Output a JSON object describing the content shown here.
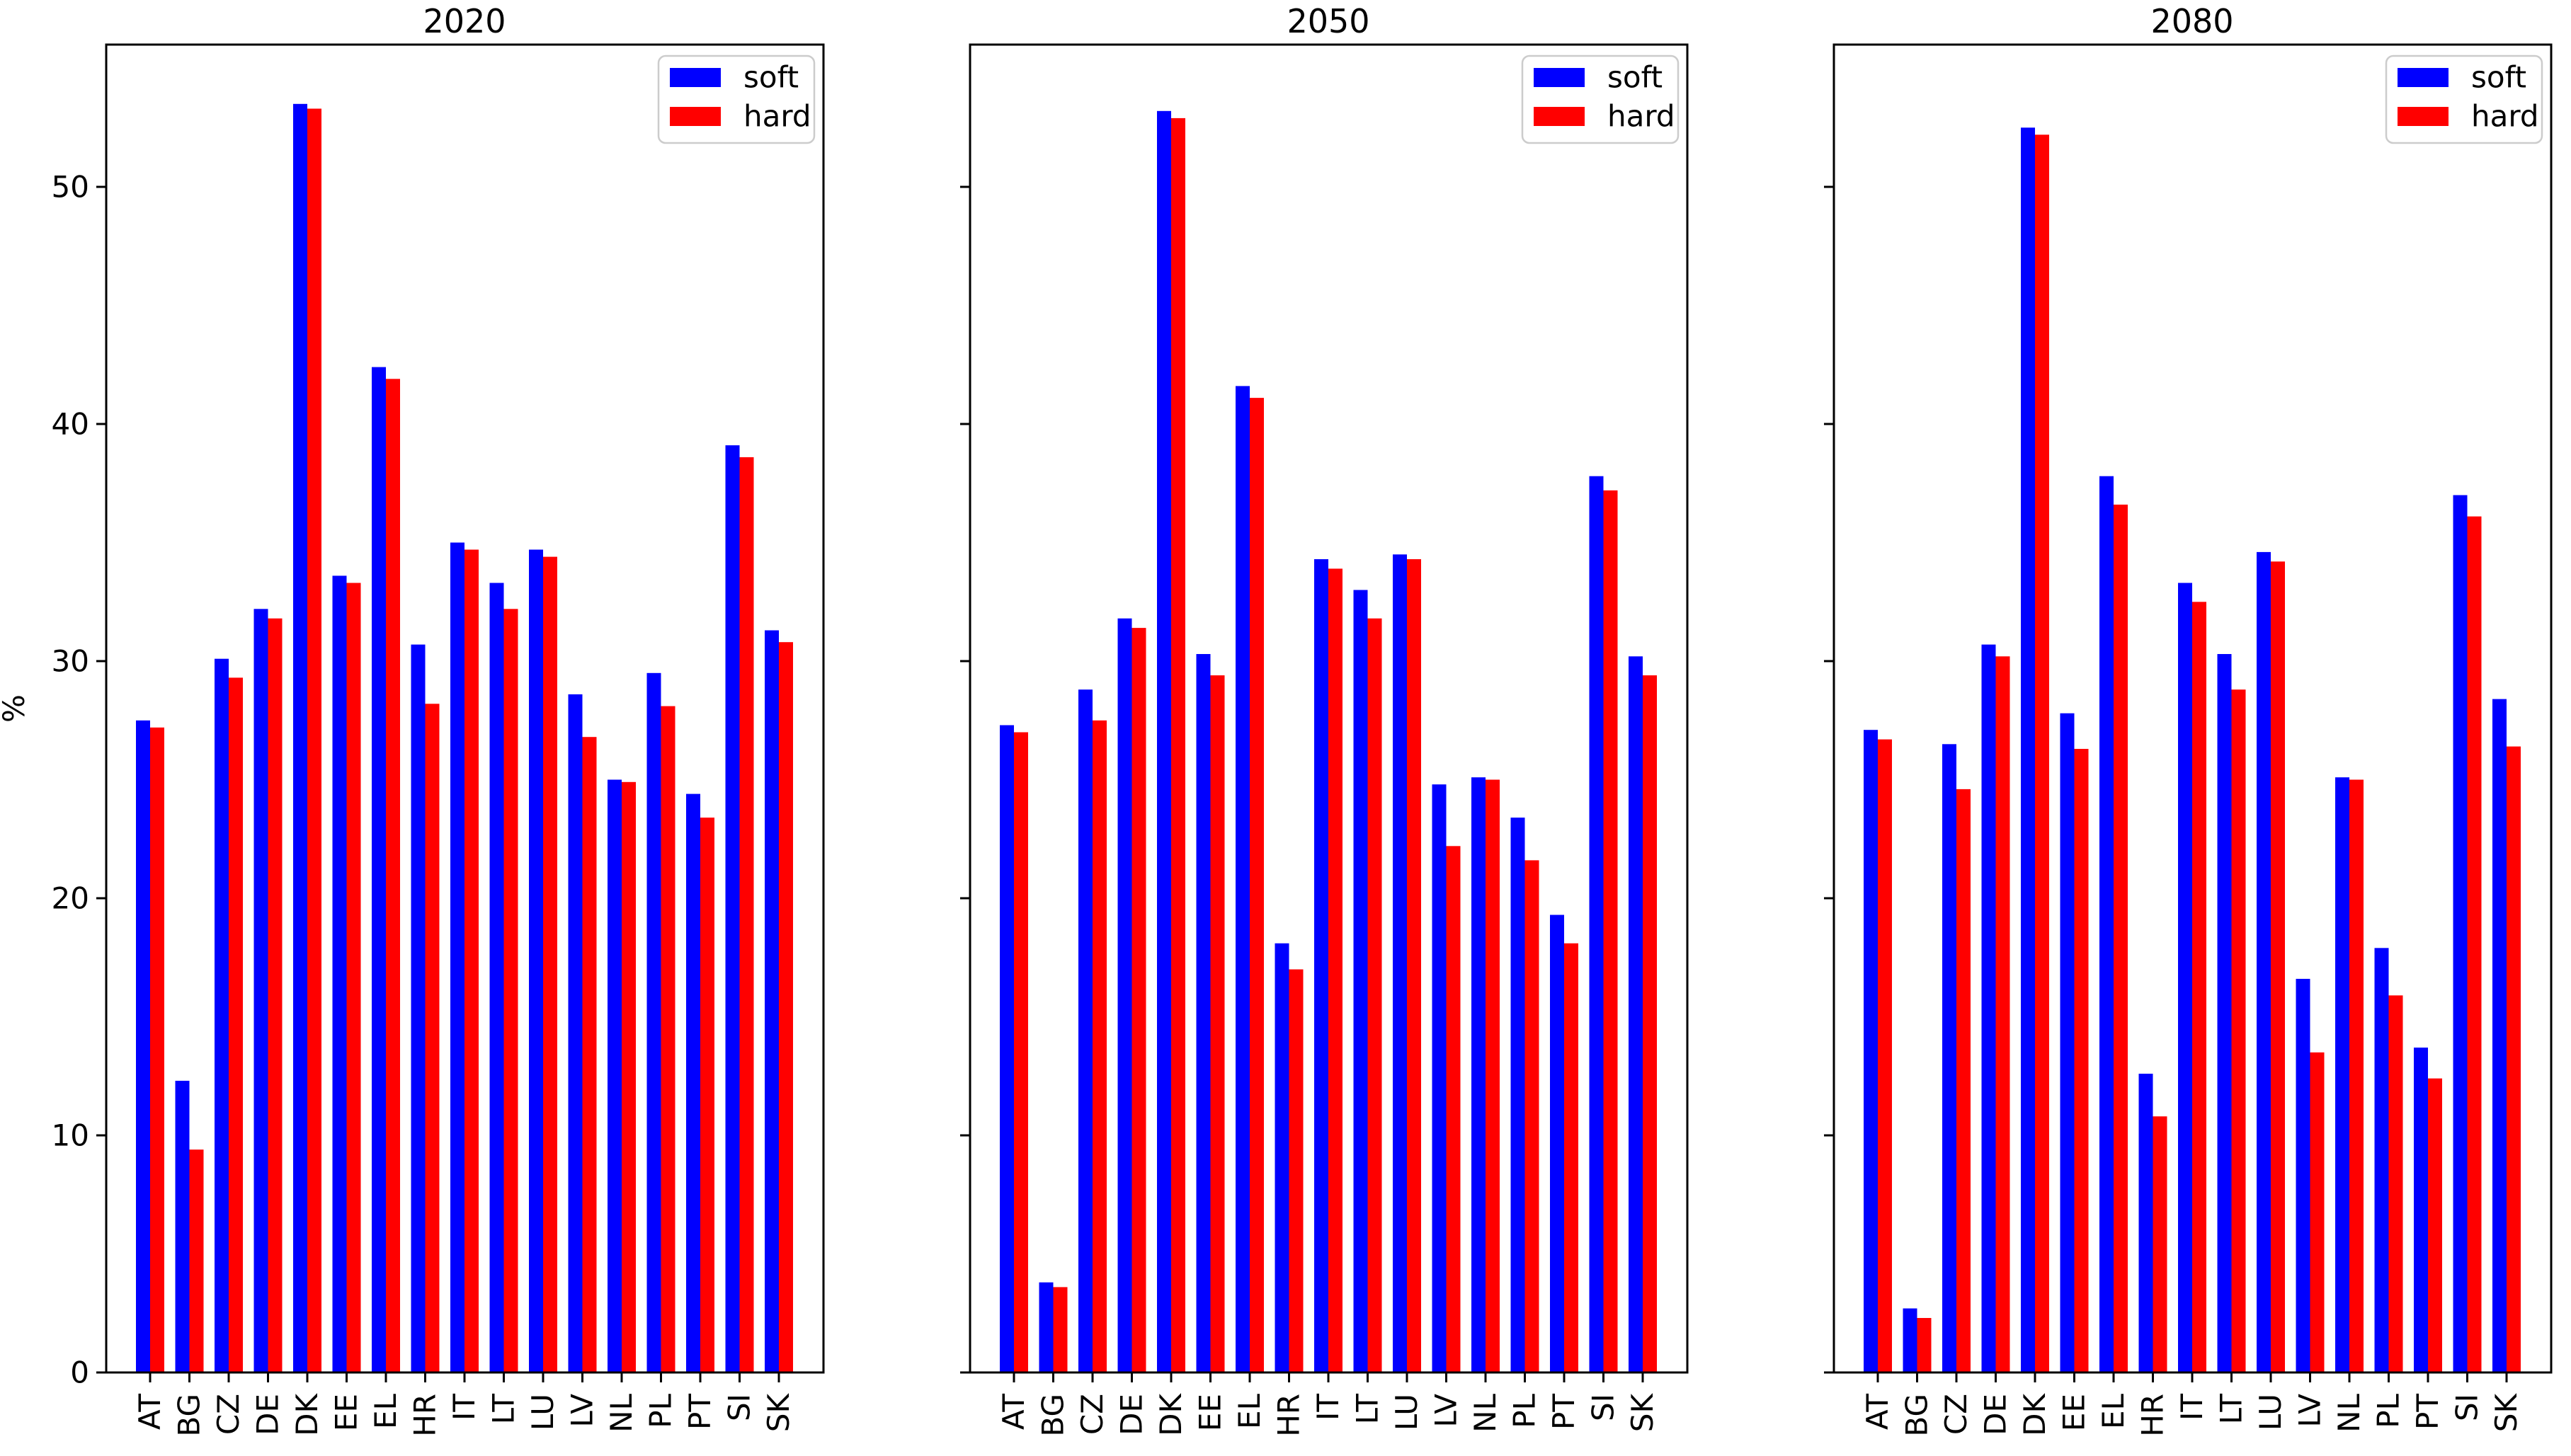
{
  "figure": {
    "ylabel": "%",
    "background": "#ffffff",
    "colors": {
      "soft": "#0000ff",
      "hard": "#ff0000",
      "axis": "#000000",
      "legend_border": "#cccccc",
      "legend_fill": "#ffffff"
    },
    "legend": {
      "position": "upper right",
      "entries": [
        "soft",
        "hard"
      ]
    },
    "y_ticks": [
      0,
      10,
      20,
      30,
      40,
      50
    ]
  },
  "chart_data": [
    {
      "type": "bar",
      "title": "2020",
      "xlabel": "",
      "ylabel": "%",
      "ylim": [
        0,
        56
      ],
      "grid": false,
      "legend_position": "upper right",
      "categories": [
        "AT",
        "BG",
        "CZ",
        "DE",
        "DK",
        "EE",
        "EL",
        "HR",
        "IT",
        "LT",
        "LU",
        "LV",
        "NL",
        "PL",
        "PT",
        "SI",
        "SK"
      ],
      "series": [
        {
          "name": "soft",
          "color": "#0000ff",
          "values": [
            27.5,
            12.3,
            30.1,
            32.2,
            53.5,
            33.6,
            42.4,
            30.7,
            35.0,
            33.3,
            34.7,
            28.6,
            25.0,
            29.5,
            24.4,
            39.1,
            31.3
          ]
        },
        {
          "name": "hard",
          "color": "#ff0000",
          "values": [
            27.2,
            9.4,
            29.3,
            31.8,
            53.3,
            33.3,
            41.9,
            28.2,
            34.7,
            32.2,
            34.4,
            26.8,
            24.9,
            28.1,
            23.4,
            38.6,
            30.8
          ]
        }
      ]
    },
    {
      "type": "bar",
      "title": "2050",
      "xlabel": "",
      "ylabel": "",
      "ylim": [
        0,
        56
      ],
      "grid": false,
      "legend_position": "upper right",
      "categories": [
        "AT",
        "BG",
        "CZ",
        "DE",
        "DK",
        "EE",
        "EL",
        "HR",
        "IT",
        "LT",
        "LU",
        "LV",
        "NL",
        "PL",
        "PT",
        "SI",
        "SK"
      ],
      "series": [
        {
          "name": "soft",
          "color": "#0000ff",
          "values": [
            27.3,
            3.8,
            28.8,
            31.8,
            53.2,
            30.3,
            41.6,
            18.1,
            34.3,
            33.0,
            34.5,
            24.8,
            25.1,
            23.4,
            19.3,
            37.8,
            30.2
          ]
        },
        {
          "name": "hard",
          "color": "#ff0000",
          "values": [
            27.0,
            3.6,
            27.5,
            31.4,
            52.9,
            29.4,
            41.1,
            17.0,
            33.9,
            31.8,
            34.3,
            22.2,
            25.0,
            21.6,
            18.1,
            37.2,
            29.4
          ]
        }
      ]
    },
    {
      "type": "bar",
      "title": "2080",
      "xlabel": "",
      "ylabel": "",
      "ylim": [
        0,
        56
      ],
      "grid": false,
      "legend_position": "upper right",
      "categories": [
        "AT",
        "BG",
        "CZ",
        "DE",
        "DK",
        "EE",
        "EL",
        "HR",
        "IT",
        "LT",
        "LU",
        "LV",
        "NL",
        "PL",
        "PT",
        "SI",
        "SK"
      ],
      "series": [
        {
          "name": "soft",
          "color": "#0000ff",
          "values": [
            27.1,
            2.7,
            26.5,
            30.7,
            52.5,
            27.8,
            37.8,
            12.6,
            33.3,
            30.3,
            34.6,
            16.6,
            25.1,
            17.9,
            13.7,
            37.0,
            28.4
          ]
        },
        {
          "name": "hard",
          "color": "#ff0000",
          "values": [
            26.7,
            2.3,
            24.6,
            30.2,
            52.2,
            26.3,
            36.6,
            10.8,
            32.5,
            28.8,
            34.2,
            13.5,
            25.0,
            15.9,
            12.4,
            36.1,
            26.4
          ]
        }
      ]
    }
  ]
}
